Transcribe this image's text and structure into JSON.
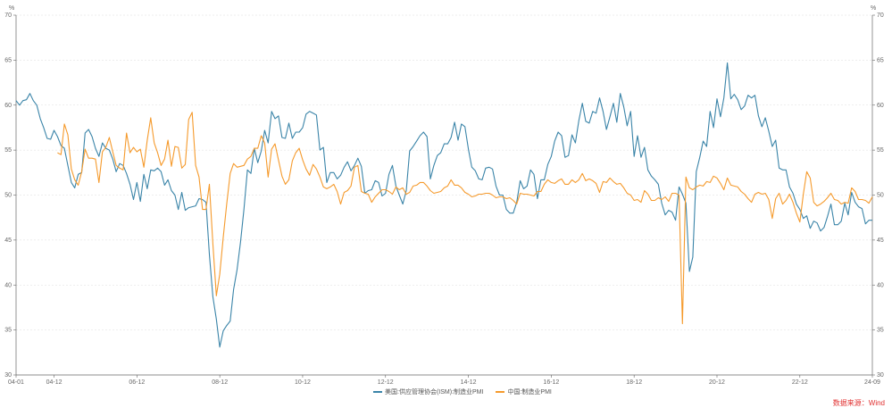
{
  "chart_data": {
    "type": "line",
    "title": "",
    "ylabel_left": "%",
    "ylabel_right": "%",
    "ylim": [
      30,
      70
    ],
    "yticks": [
      "30",
      "35",
      "40",
      "45",
      "50",
      "55",
      "60",
      "65",
      "70"
    ],
    "start": "2004-01",
    "xticks": [
      {
        "label": "04-01",
        "month": "2004-01"
      },
      {
        "label": "04-12",
        "month": "2004-12"
      },
      {
        "label": "06-12",
        "month": "2006-12"
      },
      {
        "label": "08-12",
        "month": "2008-12"
      },
      {
        "label": "10-12",
        "month": "2010-12"
      },
      {
        "label": "12-12",
        "month": "2012-12"
      },
      {
        "label": "14-12",
        "month": "2014-12"
      },
      {
        "label": "16-12",
        "month": "2016-12"
      },
      {
        "label": "18-12",
        "month": "2018-12"
      },
      {
        "label": "20-12",
        "month": "2020-12"
      },
      {
        "label": "22-12",
        "month": "2022-12"
      },
      {
        "label": "24-09",
        "month": "2024-09"
      }
    ],
    "grid": true,
    "legend_position": "bottom",
    "series": [
      {
        "name": "美国:供应管理协会(ISM):制造业PMI",
        "color": "#3a84a8",
        "start": "2004-01",
        "values": [
          60.5,
          60.0,
          60.5,
          60.6,
          61.3,
          60.5,
          60.0,
          58.5,
          57.5,
          56.3,
          56.2,
          57.2,
          56.5,
          55.5,
          55.2,
          53.3,
          51.4,
          50.8,
          52.3,
          52.5,
          56.9,
          57.3,
          56.5,
          55.2,
          54.3,
          55.8,
          55.2,
          55.0,
          54.0,
          52.6,
          53.5,
          53.3,
          52.4,
          51.2,
          49.5,
          51.4,
          49.3,
          52.3,
          50.7,
          52.8,
          52.7,
          53.0,
          52.6,
          51.1,
          51.7,
          50.5,
          50.0,
          48.4,
          50.3,
          48.3,
          48.6,
          48.7,
          48.8,
          49.6,
          49.5,
          49.2,
          43.4,
          38.7,
          36.2,
          33.1,
          34.9,
          35.5,
          36.0,
          39.5,
          41.7,
          44.8,
          48.4,
          52.8,
          52.4,
          55.2,
          53.6,
          54.9,
          57.2,
          55.8,
          59.3,
          58.5,
          58.8,
          56.4,
          56.3,
          58.0,
          56.3,
          57.0,
          57.0,
          57.5,
          59.0,
          59.3,
          59.1,
          58.9,
          55.0,
          55.3,
          51.4,
          52.5,
          52.5,
          51.8,
          52.2,
          53.1,
          53.7,
          52.7,
          53.3,
          54.1,
          53.2,
          50.2,
          50.5,
          50.6,
          51.6,
          51.4,
          49.9,
          50.2,
          52.3,
          53.3,
          51.0,
          50.0,
          49.0,
          50.5,
          54.9,
          55.4,
          56.0,
          56.6,
          57.0,
          56.5,
          51.8,
          53.3,
          54.4,
          54.7,
          55.7,
          55.7,
          56.4,
          58.1,
          56.1,
          57.9,
          57.6,
          55.1,
          53.1,
          52.7,
          51.8,
          51.7,
          53.0,
          53.1,
          52.9,
          51.0,
          50.0,
          50.0,
          48.4,
          48.0,
          48.0,
          49.2,
          51.6,
          50.7,
          51.0,
          52.8,
          52.3,
          49.6,
          51.7,
          51.7,
          53.4,
          54.3,
          56.0,
          57.0,
          56.6,
          54.2,
          54.4,
          56.7,
          55.8,
          58.3,
          60.2,
          58.2,
          58.0,
          59.3,
          59.1,
          60.8,
          59.3,
          57.3,
          58.7,
          60.2,
          58.1,
          61.3,
          59.8,
          57.7,
          59.3,
          54.3,
          56.6,
          54.2,
          55.3,
          52.8,
          52.1,
          51.7,
          51.2,
          49.1,
          47.8,
          48.3,
          48.1,
          47.2,
          50.9,
          50.1,
          49.1,
          41.5,
          43.1,
          52.6,
          54.2,
          56.0,
          55.4,
          59.3,
          57.5,
          60.7,
          58.7,
          60.8,
          64.7,
          60.7,
          61.2,
          60.6,
          59.5,
          59.9,
          61.1,
          60.8,
          61.1,
          58.8,
          57.6,
          58.6,
          57.1,
          55.4,
          56.1,
          53.0,
          52.8,
          52.8,
          50.9,
          50.2,
          49.0,
          48.4,
          47.4,
          47.7,
          46.3,
          47.1,
          46.9,
          46.0,
          46.4,
          47.6,
          49.0,
          46.7,
          46.7,
          47.1,
          49.1,
          47.8,
          50.3,
          49.2,
          48.7,
          48.5,
          46.8,
          47.2,
          47.2
        ]
      },
      {
        "name": "中国:制造业PMI",
        "color": "#f59a2c",
        "start": "2005-01",
        "values": [
          54.7,
          54.5,
          57.9,
          56.7,
          52.9,
          51.7,
          51.1,
          52.6,
          55.1,
          54.1,
          54.1,
          54.0,
          51.4,
          54.8,
          55.3,
          56.4,
          54.8,
          53.3,
          53.0,
          52.8,
          56.9,
          54.7,
          55.3,
          54.8,
          55.1,
          53.1,
          56.1,
          58.6,
          55.8,
          54.7,
          53.3,
          54.0,
          56.1,
          53.2,
          55.4,
          55.3,
          53.0,
          53.4,
          58.4,
          59.2,
          53.3,
          52.0,
          48.4,
          48.4,
          51.2,
          44.6,
          38.8,
          41.2,
          45.3,
          49.0,
          52.4,
          53.5,
          53.1,
          53.2,
          53.3,
          54.0,
          54.3,
          55.2,
          55.2,
          56.6,
          55.8,
          52.0,
          55.1,
          55.7,
          53.9,
          52.1,
          51.2,
          51.7,
          53.8,
          54.7,
          55.2,
          53.9,
          52.9,
          52.2,
          53.4,
          52.9,
          52.0,
          50.9,
          50.7,
          50.9,
          51.2,
          50.4,
          49.0,
          50.3,
          50.5,
          51.0,
          53.1,
          53.3,
          50.4,
          50.2,
          50.1,
          49.2,
          49.8,
          50.2,
          50.6,
          50.6,
          50.4,
          50.1,
          50.9,
          50.6,
          50.8,
          50.1,
          50.3,
          51.0,
          51.1,
          51.4,
          51.4,
          51.0,
          50.5,
          50.2,
          50.3,
          50.4,
          50.8,
          51.0,
          51.7,
          51.1,
          51.1,
          50.8,
          50.3,
          50.1,
          49.8,
          49.9,
          50.1,
          50.1,
          50.2,
          50.2,
          50.0,
          49.7,
          49.8,
          49.8,
          49.6,
          49.7,
          49.4,
          49.0,
          50.2,
          50.1,
          50.1,
          50.0,
          49.9,
          50.4,
          50.4,
          51.2,
          51.7,
          51.4,
          51.3,
          51.6,
          51.8,
          51.2,
          51.2,
          51.7,
          51.4,
          51.7,
          52.4,
          51.6,
          51.8,
          51.6,
          51.3,
          50.3,
          51.5,
          51.4,
          51.9,
          51.5,
          51.2,
          51.3,
          50.8,
          50.2,
          50.0,
          49.4,
          49.5,
          49.2,
          50.5,
          50.1,
          49.4,
          49.4,
          49.7,
          49.5,
          49.8,
          49.3,
          50.2,
          50.2,
          50.0,
          35.7,
          52.0,
          50.8,
          50.6,
          50.9,
          51.1,
          51.0,
          51.5,
          51.4,
          52.1,
          51.9,
          51.3,
          50.6,
          51.9,
          51.1,
          51.0,
          50.9,
          50.4,
          50.1,
          49.6,
          49.2,
          50.1,
          50.3,
          50.1,
          50.2,
          49.5,
          47.4,
          49.6,
          50.2,
          49.0,
          49.4,
          50.1,
          49.2,
          48.0,
          47.0,
          50.1,
          52.6,
          51.9,
          49.2,
          48.8,
          49.0,
          49.3,
          49.7,
          50.2,
          49.5,
          49.4,
          49.0,
          49.2,
          49.1,
          50.8,
          50.4,
          49.5,
          49.5,
          49.4,
          49.1,
          49.8
        ]
      }
    ]
  },
  "source": "数据来源：Wind"
}
